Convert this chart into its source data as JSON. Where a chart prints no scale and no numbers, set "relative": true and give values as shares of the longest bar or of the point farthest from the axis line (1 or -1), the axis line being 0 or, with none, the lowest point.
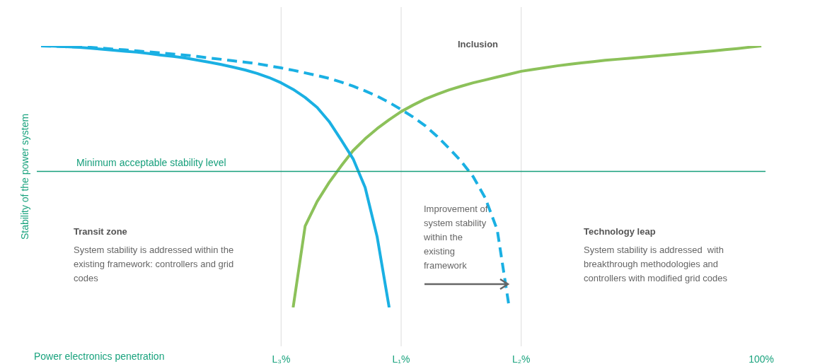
{
  "chart_data": {
    "type": "line",
    "relative": true,
    "xlabel": "Power electronics penetration",
    "ylabel": "Stability of the power system",
    "categories": [
      null,
      null,
      null,
      null,
      null,
      null,
      null,
      null,
      null,
      null,
      null,
      null,
      null,
      null,
      null,
      null,
      null,
      null,
      null,
      null,
      "L₃%",
      null,
      null,
      null,
      null,
      null,
      null,
      null,
      null,
      null,
      "L₁%",
      null,
      null,
      null,
      null,
      null,
      null,
      null,
      null,
      null,
      "L₂%",
      null,
      null,
      null,
      null,
      null,
      null,
      null,
      null,
      null,
      null,
      null,
      null,
      null,
      null,
      null,
      null,
      null,
      null,
      null,
      "100%"
    ],
    "series": [
      {
        "color": "#1ab0e3",
        "line_style": "solid",
        "values": [
          1.0,
          0.999,
          0.997,
          0.995,
          0.992,
          0.988,
          0.984,
          0.98,
          0.976,
          0.971,
          0.965,
          0.96,
          0.954,
          0.946,
          0.938,
          0.929,
          0.919,
          0.908,
          0.895,
          0.879,
          0.859,
          0.834,
          0.803,
          0.765,
          0.711,
          0.641,
          0.568,
          0.459,
          0.27,
          0,
          null,
          null,
          null,
          null,
          null,
          null,
          null,
          null,
          null,
          null,
          null,
          null,
          null,
          null,
          null,
          null,
          null,
          null,
          null,
          null,
          null,
          null,
          null,
          null,
          null,
          null,
          null,
          null,
          null,
          null,
          null
        ]
      },
      {
        "color": "#1ab0e3",
        "line_style": "dashed",
        "values": [
          1.0,
          0.999,
          0.997,
          0.996,
          0.995,
          0.992,
          0.988,
          0.985,
          0.981,
          0.977,
          0.973,
          0.969,
          0.965,
          0.96,
          0.954,
          0.949,
          0.943,
          0.938,
          0.932,
          0.924,
          0.916,
          0.907,
          0.897,
          0.887,
          0.876,
          0.862,
          0.846,
          0.828,
          0.808,
          0.784,
          0.757,
          0.728,
          0.695,
          0.654,
          0.608,
          0.559,
          0.5,
          0.419,
          0.297,
          0,
          null,
          null,
          null,
          null,
          null,
          null,
          null,
          null,
          null,
          null,
          null,
          null,
          null,
          null,
          null,
          null,
          null,
          null,
          null,
          null,
          null
        ]
      },
      {
        "color": "#8cc15a",
        "line_style": "solid",
        "values": [
          null,
          null,
          null,
          null,
          null,
          null,
          null,
          null,
          null,
          null,
          null,
          null,
          null,
          null,
          null,
          null,
          null,
          null,
          null,
          null,
          null,
          0,
          0.311,
          0.405,
          0.478,
          0.541,
          0.6,
          0.645,
          0.684,
          0.718,
          0.749,
          0.774,
          0.797,
          0.815,
          0.832,
          0.846,
          0.859,
          0.87,
          0.881,
          0.892,
          0.903,
          0.91,
          0.917,
          0.924,
          0.93,
          0.935,
          0.94,
          0.945,
          0.949,
          0.953,
          0.957,
          0.961,
          0.965,
          0.969,
          0.973,
          0.977,
          0.981,
          0.986,
          0.99,
          0.995,
          1.0
        ]
      }
    ],
    "ref_lines": [
      {
        "axis": "y",
        "value": 0.52,
        "label": "Minimum acceptable stability level",
        "color": "#179f7c"
      }
    ],
    "grid": "x",
    "legend": false,
    "marker": "none",
    "annotations": [
      "Inclusion",
      "Transit zone",
      "System stability is addressed within the existing framework: controllers and grid codes",
      "Improvement of system stability within the existing framework",
      "Technology leap",
      "System stability is addressed  with breakthrough methodologies and controllers with modified grid codes"
    ]
  }
}
